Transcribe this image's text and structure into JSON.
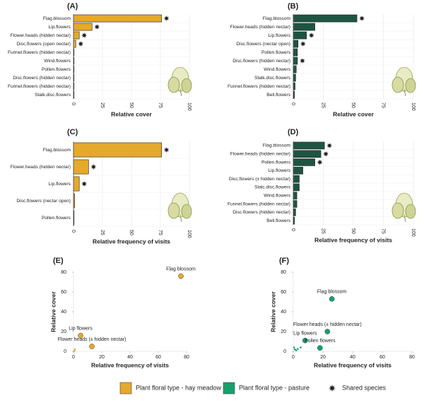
{
  "chart_data": [
    {
      "type": "hbar",
      "title": "(A)",
      "xlabel": "Relative cover",
      "color": "#e5a92b",
      "categories": [
        "Flag.blossom",
        "Lip.flowers",
        "Flower.heads (hidden nectar)",
        "Disc.flowers (open nectar)",
        "Funnel.flowers (hidden nectar)",
        "Wind.flowers",
        "Pollen.flowers",
        "Disc.flowers (hidden nectar)",
        "Funnel.flowers (hidden nectar)",
        "Stalk.disc.flowers"
      ],
      "values": [
        76,
        16,
        5,
        2,
        0.5,
        0.3,
        0.3,
        0.2,
        0.2,
        0.2
      ],
      "shared": [
        true,
        true,
        true,
        true,
        false,
        false,
        false,
        false,
        false,
        false
      ],
      "xlim": [
        0,
        100
      ],
      "xticks": [
        0,
        25,
        50,
        75,
        100
      ]
    },
    {
      "type": "hbar",
      "title": "(B)",
      "xlabel": "Relative cover",
      "color": "#1e5542",
      "categories": [
        "Flag.blossom",
        "Flower.heads (hidden nectar)",
        "Lip.flowers",
        "Disc.flowers (nectar open)",
        "Pollen.flowers",
        "Disc.flowers (hidden nectar)",
        "Wind.flowers",
        "Stalk.disc.flowers",
        "Funnel.flowers (hidden nectar)",
        "Bell.flowers"
      ],
      "values": [
        53,
        18,
        11,
        4,
        3.5,
        3.5,
        2.5,
        2,
        1.5,
        1
      ],
      "shared": [
        true,
        false,
        true,
        true,
        false,
        true,
        false,
        false,
        false,
        false
      ],
      "xlim": [
        0,
        100
      ],
      "xticks": [
        0,
        25,
        50,
        75,
        100
      ]
    },
    {
      "type": "hbar",
      "title": "(C)",
      "xlabel": "Relative frequency of visits",
      "color": "#e5a92b",
      "categories": [
        "Flag.blossom",
        "Flower.heads (hidden nectar)",
        "Lip.flowers",
        "Disc.flowers (nectar open)",
        "Pollen.flowers"
      ],
      "values": [
        76,
        13,
        5,
        1,
        0.5
      ],
      "shared": [
        true,
        true,
        true,
        false,
        false
      ],
      "xlim": [
        0,
        100
      ],
      "xticks": [
        0,
        25,
        50,
        75,
        100
      ]
    },
    {
      "type": "hbar",
      "title": "(D)",
      "xlabel": "Relative frequency of visits",
      "color": "#1e5542",
      "categories": [
        "Flag.blossom",
        "Flower.heads (hidden nectar)",
        "Pollen.flowers",
        "Lip.flowers",
        "Disc.flowers (± hidden nectar)",
        "Stalc.disc.flowers",
        "Wind.flowers",
        "Funnel.flowers (hidden nectar)",
        "Disc.flowers (hidden nectar)",
        "Bell.flowers"
      ],
      "values": [
        26,
        23,
        18,
        8,
        5,
        5,
        3,
        3,
        2,
        1
      ],
      "shared": [
        true,
        true,
        true,
        false,
        false,
        false,
        false,
        false,
        false,
        false
      ],
      "xlim": [
        0,
        100
      ],
      "xticks": [
        0,
        25,
        50,
        75,
        100
      ]
    },
    {
      "type": "scatter",
      "title": "(E)",
      "xlabel": "Relative frequency of visits",
      "ylabel": "Relative cover",
      "color": "#e5a92b",
      "x": [
        76,
        5,
        13,
        1,
        0.5
      ],
      "y": [
        76,
        16,
        5,
        2,
        0.3
      ],
      "point_labels": [
        "Flag blossom",
        "Lip flowers",
        "Flower heads (± hidden nectar)",
        null,
        null
      ],
      "xlim": [
        0,
        80
      ],
      "xticks": [
        0,
        20,
        40,
        60,
        80
      ],
      "ylim": [
        0,
        80
      ],
      "yticks": [
        0,
        20,
        40,
        60,
        80
      ]
    },
    {
      "type": "scatter",
      "title": "(F)",
      "xlabel": "Relative frequency of visits",
      "ylabel": "Relative cover",
      "color": "#17a06c",
      "x": [
        26,
        23,
        8,
        18,
        0.5,
        1,
        3,
        5,
        2
      ],
      "y": [
        53,
        20,
        11,
        3.5,
        4,
        2,
        2.5,
        4,
        1
      ],
      "point_labels": [
        "Flag blossom",
        "Flower heads (± hidden nectar)",
        "Lip flowers",
        "Pollen flowers",
        null,
        null,
        null,
        null,
        null
      ],
      "xlim": [
        0,
        80
      ],
      "xticks": [
        0,
        20,
        40,
        60,
        80
      ],
      "ylim": [
        0,
        80
      ],
      "yticks": [
        0,
        20,
        40,
        60,
        80
      ]
    }
  ],
  "legend": [
    {
      "label": "Plant floral type - hay meadow",
      "color": "#e5a92b"
    },
    {
      "label": "Plant floral type - pasture",
      "color": "#17a06c"
    },
    {
      "label": "Shared species",
      "color": "#222"
    }
  ]
}
